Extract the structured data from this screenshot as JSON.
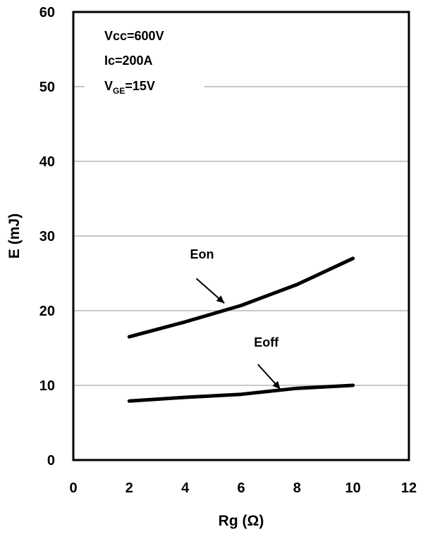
{
  "chart_data": {
    "type": "line",
    "xlabel": "Rg (Ω)",
    "ylabel": "E  (mJ)",
    "xlim": [
      0,
      12
    ],
    "ylim": [
      0,
      60
    ],
    "x_ticks": [
      0,
      2,
      4,
      6,
      8,
      10,
      12
    ],
    "y_ticks": [
      0,
      10,
      20,
      30,
      40,
      50,
      60
    ],
    "grid": "horizontal",
    "conditions": {
      "vcc": "Vcc=600V",
      "ic": "Ic=200A",
      "vge_prefix": "V",
      "vge_sub": "GE",
      "vge_value": "=15V"
    },
    "series": [
      {
        "name": "Eon",
        "x": [
          2,
          4,
          6,
          8,
          10
        ],
        "values": [
          16.5,
          18.5,
          20.7,
          23.5,
          27
        ]
      },
      {
        "name": "Eoff",
        "x": [
          2,
          4,
          6,
          8,
          10
        ],
        "values": [
          7.9,
          8.4,
          8.8,
          9.6,
          10
        ]
      }
    ]
  }
}
